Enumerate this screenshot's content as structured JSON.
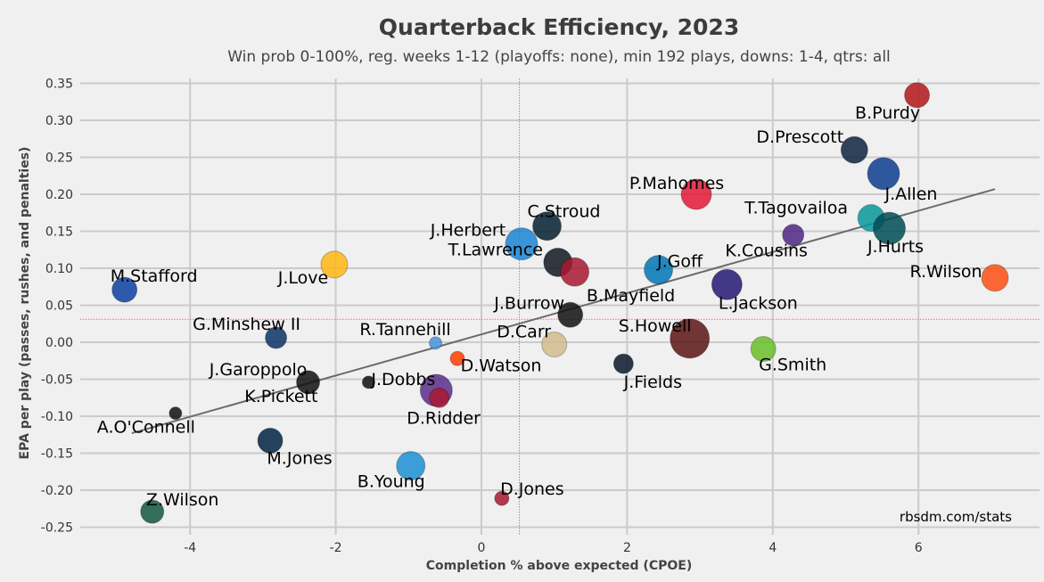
{
  "chart_data": {
    "type": "scatter",
    "title": "Quarterback Efficiency, 2023",
    "subtitle": "Win prob 0-100%, reg. weeks 1-12 (playoffs: none), min 192 plays, downs: 1-4, qtrs: all",
    "xlabel": "Completion % above expected (CPOE)",
    "ylabel": "EPA per play (passes, rushes, and penalties)",
    "xlim": [
      -5.5,
      7.8
    ],
    "ylim": [
      -0.25,
      0.36
    ],
    "xticks": [
      -4,
      -2,
      0,
      2,
      4,
      6
    ],
    "xtick_labels": [
      "-4",
      "-2",
      "0",
      "2",
      "4",
      "6"
    ],
    "yticks": [
      -0.25,
      -0.2,
      -0.15,
      -0.1,
      -0.05,
      0,
      0.05,
      0.1,
      0.15,
      0.2,
      0.25,
      0.3,
      0.35
    ],
    "ytick_labels": [
      "-0.25",
      "-0.20",
      "-0.15",
      "-0.10",
      "-0.05",
      "0.00",
      "0.05",
      "0.10",
      "0.15",
      "0.20",
      "0.25",
      "0.30",
      "0.35"
    ],
    "grid": true,
    "mean_lines": {
      "x": 0.52,
      "y": 0.031,
      "color": "#ff6b6b"
    },
    "trend_line": {
      "x": [
        -4.8,
        7.05
      ],
      "y": [
        -0.123,
        0.207
      ],
      "color": "#6b6b6b"
    },
    "credit": "rbsdm.com/stats",
    "points": [
      {
        "name": "B.Purdy",
        "x": 5.98,
        "y": 0.334,
        "size": 14,
        "color": "#b3161a"
      },
      {
        "name": "D.Prescott",
        "x": 5.12,
        "y": 0.26,
        "size": 15,
        "color": "#0e2240"
      },
      {
        "name": "J.Allen",
        "x": 5.52,
        "y": 0.228,
        "size": 18,
        "color": "#0d3c8f"
      },
      {
        "name": "P.Mahomes",
        "x": 2.95,
        "y": 0.2,
        "size": 17,
        "color": "#e31837"
      },
      {
        "name": "T.Tagovailoa",
        "x": 5.35,
        "y": 0.168,
        "size": 15,
        "color": "#08979b"
      },
      {
        "name": "J.Hurts",
        "x": 5.6,
        "y": 0.154,
        "size": 18,
        "color": "#004c54"
      },
      {
        "name": "C.Stroud",
        "x": 0.9,
        "y": 0.157,
        "size": 16,
        "color": "#03202f"
      },
      {
        "name": "J.Herbert",
        "x": 0.55,
        "y": 0.133,
        "size": 18,
        "color": "#1a84d4"
      },
      {
        "name": "K.Cousins",
        "x": 4.28,
        "y": 0.145,
        "size": 12,
        "color": "#4f2683"
      },
      {
        "name": "T.Lawrence",
        "x": 1.05,
        "y": 0.108,
        "size": 16,
        "color": "#101820"
      },
      {
        "name": "J.Love",
        "x": -2.02,
        "y": 0.105,
        "size": 15,
        "color": "#ffb612"
      },
      {
        "name": "J.Goff",
        "x": 2.43,
        "y": 0.098,
        "size": 16,
        "color": "#0076b6"
      },
      {
        "name": "B.Mayfield",
        "x": 1.28,
        "y": 0.095,
        "size": 16,
        "color": "#a71930"
      },
      {
        "name": "R.Wilson",
        "x": 7.05,
        "y": 0.087,
        "size": 15,
        "color": "#fb4f14"
      },
      {
        "name": "L.Jackson",
        "x": 3.37,
        "y": 0.078,
        "size": 17,
        "color": "#241773"
      },
      {
        "name": "M.Stafford",
        "x": -4.9,
        "y": 0.071,
        "size": 14,
        "color": "#0b3fa0"
      },
      {
        "name": "J.Burrow",
        "x": 1.22,
        "y": 0.037,
        "size": 14,
        "color": "#111111"
      },
      {
        "name": "G.Minshew II",
        "x": -2.82,
        "y": 0.006,
        "size": 12,
        "color": "#0b3264"
      },
      {
        "name": "S.Howell",
        "x": 2.86,
        "y": 0.005,
        "size": 22,
        "color": "#5a1414"
      },
      {
        "name": "R.Tannehill",
        "x": -0.63,
        "y": -0.001,
        "size": 7,
        "color": "#4b92db"
      },
      {
        "name": "D.Carr",
        "x": 1.0,
        "y": -0.003,
        "size": 14,
        "color": "#d3bc8d"
      },
      {
        "name": "G.Smith",
        "x": 3.87,
        "y": -0.009,
        "size": 14,
        "color": "#69be28"
      },
      {
        "name": "D.Watson",
        "x": -0.33,
        "y": -0.022,
        "size": 8,
        "color": "#ff3c00"
      },
      {
        "name": "J.Fields",
        "x": 1.95,
        "y": -0.029,
        "size": 11,
        "color": "#0b162a"
      },
      {
        "name": "J.Garoppolo",
        "x": -2.38,
        "y": -0.054,
        "size": 13,
        "color": "#111111"
      },
      {
        "name": "J.Dobbs",
        "x": -1.55,
        "y": -0.054,
        "size": 7,
        "color": "#111111"
      },
      {
        "name": "K.Pickett",
        "x": -0.62,
        "y": -0.065,
        "size": 18,
        "color": "#5b2d8a"
      },
      {
        "name": "D.Ridder",
        "x": -0.58,
        "y": -0.075,
        "size": 11,
        "color": "#a71930"
      },
      {
        "name": "A.O'Connell",
        "x": -4.2,
        "y": -0.096,
        "size": 7,
        "color": "#111111"
      },
      {
        "name": "M.Jones",
        "x": -2.9,
        "y": -0.133,
        "size": 14,
        "color": "#002244"
      },
      {
        "name": "B.Young",
        "x": -0.97,
        "y": -0.167,
        "size": 16,
        "color": "#1b8fd4"
      },
      {
        "name": "D.Jones",
        "x": 0.28,
        "y": -0.211,
        "size": 8,
        "color": "#a71930"
      },
      {
        "name": "Z.Wilson",
        "x": -4.52,
        "y": -0.229,
        "size": 13,
        "color": "#125740"
      }
    ]
  }
}
